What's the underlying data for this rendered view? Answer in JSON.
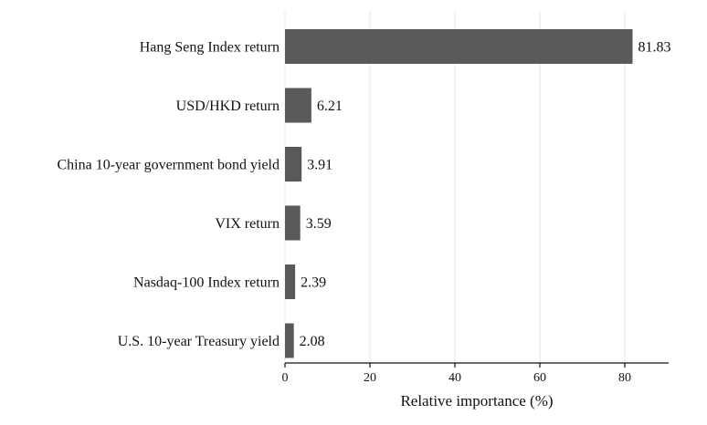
{
  "chart_data": {
    "type": "bar",
    "orientation": "horizontal",
    "categories": [
      "Hang Seng Index return",
      "USD/HKD return",
      "China 10-year government bond yield",
      "VIX return",
      "Nasdaq-100 Index return",
      "U.S. 10-year Treasury yield"
    ],
    "values": [
      81.83,
      6.21,
      3.91,
      3.59,
      2.39,
      2.08
    ],
    "value_labels": [
      "81.83",
      "6.21",
      "3.91",
      "3.59",
      "2.39",
      "2.08"
    ],
    "xlabel": "Relative importance (%)",
    "ylabel": "",
    "xlim": [
      0,
      90
    ],
    "xticks": [
      0,
      20,
      40,
      60,
      80
    ],
    "xtick_labels": [
      "0",
      "20",
      "40",
      "60",
      "80"
    ],
    "grid": "vertical",
    "bar_color": "#595959"
  }
}
